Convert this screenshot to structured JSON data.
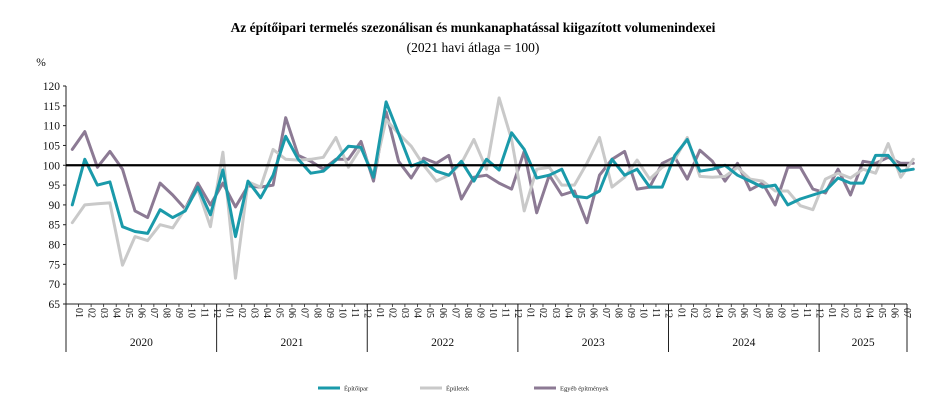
{
  "chart_data": {
    "type": "line",
    "title": "Az építőipari termelés szezonálisan és munkanaphatással kiigazított volumenindexei",
    "subtitle": "(2021 havi átlaga = 100)",
    "ylabel": "%",
    "ylim": [
      65,
      120
    ],
    "yticks": [
      65,
      70,
      75,
      80,
      85,
      90,
      95,
      100,
      105,
      110,
      115,
      120
    ],
    "reference_line": 100,
    "grid": false,
    "legend_position": "bottom",
    "month_labels": [
      "01",
      "02",
      "03",
      "04",
      "05",
      "06",
      "07",
      "08",
      "09",
      "10",
      "11",
      "12",
      "01",
      "02",
      "03",
      "04",
      "05",
      "06",
      "07",
      "08",
      "09",
      "10",
      "11",
      "12",
      "01",
      "02",
      "03",
      "04",
      "05",
      "06",
      "07",
      "08",
      "09",
      "10",
      "11",
      "12",
      "01",
      "02",
      "03",
      "04",
      "05",
      "06",
      "07",
      "08",
      "09",
      "10",
      "11",
      "12",
      "01",
      "02",
      "03",
      "04",
      "05",
      "06",
      "07",
      "08",
      "09",
      "10",
      "11",
      "12",
      "01",
      "02",
      "03",
      "04",
      "05",
      "06",
      "07"
    ],
    "years": [
      {
        "label": "2020",
        "months": 12
      },
      {
        "label": "2021",
        "months": 12
      },
      {
        "label": "2022",
        "months": 12
      },
      {
        "label": "2023",
        "months": 12
      },
      {
        "label": "2024",
        "months": 12
      },
      {
        "label": "2025",
        "months": 7
      }
    ],
    "series": [
      {
        "name": "Építőipar",
        "color": "#1a9aaa",
        "values": [
          90.0,
          101.5,
          95.0,
          95.8,
          84.5,
          83.3,
          82.8,
          88.8,
          86.8,
          88.5,
          94.5,
          87.5,
          98.8,
          82.0,
          96.0,
          91.8,
          97.5,
          107.3,
          101.5,
          98.0,
          98.5,
          101.3,
          104.8,
          104.5,
          97.0,
          116.0,
          108.0,
          99.8,
          101.0,
          98.5,
          97.5,
          101.0,
          96.0,
          101.5,
          98.8,
          108.2,
          104.0,
          96.8,
          97.5,
          99.0,
          92.2,
          91.8,
          93.5,
          101.5,
          97.5,
          99.0,
          94.5,
          94.5,
          102.5,
          106.5,
          98.5,
          99.0,
          100.0,
          97.5,
          96.0,
          94.5,
          95.0,
          90.0,
          91.5,
          92.5,
          93.5,
          96.8,
          95.5,
          95.5,
          102.5,
          102.5,
          98.5,
          99.0
        ]
      },
      {
        "name": "Épületek",
        "color": "#c9c9c9",
        "values": [
          85.5,
          90.0,
          90.3,
          90.5,
          74.8,
          82.0,
          81.0,
          85.0,
          84.2,
          89.0,
          94.0,
          84.5,
          103.3,
          71.5,
          95.8,
          94.5,
          104.0,
          101.5,
          101.3,
          101.5,
          102.0,
          107.0,
          99.5,
          104.5,
          97.5,
          111.5,
          108.0,
          104.8,
          100.0,
          96.0,
          97.5,
          100.5,
          106.5,
          99.0,
          117.0,
          106.5,
          88.5,
          99.0,
          99.5,
          95.0,
          95.0,
          100.5,
          107.0,
          94.5,
          97.0,
          101.3,
          96.5,
          99.5,
          101.5,
          107.0,
          97.2,
          97.0,
          97.2,
          99.5,
          96.5,
          96.0,
          93.5,
          93.5,
          89.8,
          88.8,
          96.5,
          98.0,
          96.8,
          99.0,
          98.0,
          105.5,
          97.0,
          101.5
        ]
      },
      {
        "name": "Egyéb építmények",
        "color": "#8c7a94",
        "values": [
          104.0,
          108.5,
          99.5,
          103.5,
          99.0,
          88.5,
          86.8,
          95.5,
          92.5,
          89.0,
          95.5,
          90.0,
          95.5,
          89.5,
          94.8,
          94.5,
          95.0,
          112.0,
          102.5,
          101.0,
          99.0,
          101.5,
          101.5,
          106.0,
          96.0,
          113.5,
          101.0,
          96.8,
          101.8,
          100.5,
          102.5,
          91.5,
          97.0,
          97.5,
          95.5,
          94.0,
          103.5,
          88.0,
          97.5,
          92.5,
          93.5,
          85.5,
          97.5,
          101.5,
          103.5,
          94.0,
          94.5,
          100.5,
          102.0,
          96.5,
          103.8,
          101.0,
          96.0,
          100.5,
          93.8,
          95.5,
          90.0,
          99.5,
          99.5,
          94.0,
          93.0,
          99.0,
          92.5,
          101.0,
          100.5,
          102.0,
          100.5,
          100.5
        ]
      }
    ]
  }
}
